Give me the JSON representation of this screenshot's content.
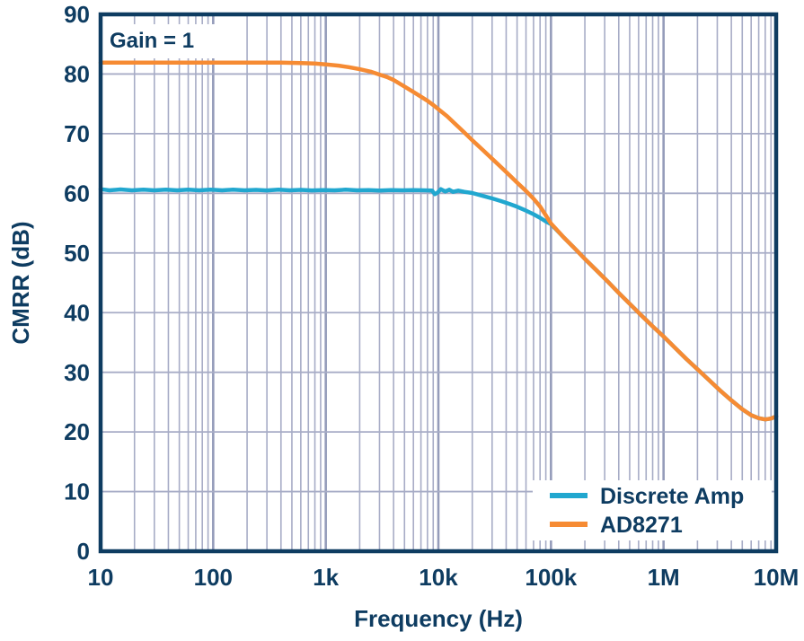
{
  "colors": {
    "navy": "#0e3c61",
    "grid_minor": "#a7acc6",
    "grid_major": "#959cba",
    "background": "#ffffff",
    "discrete_amp": "#21a7cf",
    "ad8271": "#f68b33"
  },
  "chart_data": {
    "type": "line",
    "x_scale": "log",
    "grid": true,
    "xlabel": "Frequency (Hz)",
    "ylabel": "CMRR (dB)",
    "annotation": "Gain = 1",
    "xlim": [
      10,
      10000000
    ],
    "ylim": [
      0,
      90
    ],
    "x_tick_values": [
      10,
      100,
      1000,
      10000,
      100000,
      1000000,
      10000000
    ],
    "x_tick_labels": [
      "10",
      "100",
      "1k",
      "10k",
      "100k",
      "1M",
      "10M"
    ],
    "y_tick_values": [
      0,
      10,
      20,
      30,
      40,
      50,
      60,
      70,
      80,
      90
    ],
    "y_tick_labels": [
      "0",
      "10",
      "20",
      "30",
      "40",
      "50",
      "60",
      "70",
      "80",
      "90"
    ],
    "legend_position": "bottom-right",
    "series": [
      {
        "name": "Discrete Amp",
        "color": "#21a7cf",
        "points": [
          [
            10,
            60.7
          ],
          [
            12,
            60.5
          ],
          [
            15,
            60.65
          ],
          [
            19,
            60.5
          ],
          [
            24,
            60.6
          ],
          [
            30,
            60.5
          ],
          [
            38,
            60.62
          ],
          [
            48,
            60.5
          ],
          [
            60,
            60.6
          ],
          [
            75,
            60.5
          ],
          [
            95,
            60.6
          ],
          [
            120,
            60.5
          ],
          [
            150,
            60.6
          ],
          [
            190,
            60.5
          ],
          [
            240,
            60.58
          ],
          [
            300,
            60.48
          ],
          [
            380,
            60.6
          ],
          [
            480,
            60.5
          ],
          [
            600,
            60.58
          ],
          [
            750,
            60.48
          ],
          [
            950,
            60.55
          ],
          [
            1200,
            60.5
          ],
          [
            1500,
            60.6
          ],
          [
            1900,
            60.5
          ],
          [
            2400,
            60.55
          ],
          [
            3000,
            60.45
          ],
          [
            3800,
            60.55
          ],
          [
            4800,
            60.5
          ],
          [
            6000,
            60.55
          ],
          [
            7500,
            60.5
          ],
          [
            8800,
            60.45
          ],
          [
            9300,
            59.85
          ],
          [
            9800,
            60.1
          ],
          [
            10500,
            60.7
          ],
          [
            11500,
            60.3
          ],
          [
            12500,
            60.6
          ],
          [
            13500,
            60.25
          ],
          [
            15000,
            60.45
          ],
          [
            17000,
            60.25
          ],
          [
            20000,
            60.05
          ],
          [
            25000,
            59.55
          ],
          [
            30000,
            59.15
          ],
          [
            36000,
            58.7
          ],
          [
            43000,
            58.2
          ],
          [
            50000,
            57.75
          ],
          [
            60000,
            57.1
          ],
          [
            70000,
            56.5
          ],
          [
            80000,
            55.9
          ],
          [
            90000,
            55.3
          ],
          [
            100000,
            54.85
          ],
          [
            130000,
            52.6
          ],
          [
            160000,
            50.9
          ],
          [
            200000,
            49.0
          ],
          [
            250000,
            47.2
          ],
          [
            320000,
            45.2
          ],
          [
            400000,
            43.3
          ],
          [
            500000,
            41.5
          ],
          [
            630000,
            39.6
          ],
          [
            800000,
            37.7
          ],
          [
            1000000,
            36.0
          ],
          [
            1250000,
            34.2
          ],
          [
            1600000,
            32.2
          ],
          [
            2000000,
            30.5
          ],
          [
            2500000,
            28.8
          ],
          [
            3200000,
            26.9
          ],
          [
            4000000,
            25.3
          ],
          [
            5000000,
            23.8
          ],
          [
            6000000,
            22.8
          ],
          [
            7000000,
            22.3
          ],
          [
            8000000,
            22.1
          ],
          [
            9000000,
            22.25
          ],
          [
            10000000,
            22.6
          ]
        ]
      },
      {
        "name": "AD8271",
        "color": "#f68b33",
        "points": [
          [
            10,
            81.9
          ],
          [
            15,
            81.9
          ],
          [
            25,
            81.9
          ],
          [
            40,
            81.9
          ],
          [
            60,
            81.9
          ],
          [
            100,
            81.9
          ],
          [
            150,
            81.9
          ],
          [
            250,
            81.9
          ],
          [
            400,
            81.9
          ],
          [
            600,
            81.85
          ],
          [
            800,
            81.75
          ],
          [
            1000,
            81.6
          ],
          [
            1300,
            81.4
          ],
          [
            1600,
            81.15
          ],
          [
            2000,
            80.8
          ],
          [
            2500,
            80.4
          ],
          [
            3000,
            79.9
          ],
          [
            3500,
            79.5
          ],
          [
            4000,
            79.0
          ],
          [
            5000,
            77.9
          ],
          [
            6000,
            77.0
          ],
          [
            7000,
            76.2
          ],
          [
            8000,
            75.5
          ],
          [
            9000,
            74.8
          ],
          [
            10000,
            74.1
          ],
          [
            12000,
            72.9
          ],
          [
            14000,
            71.7
          ],
          [
            17000,
            70.2
          ],
          [
            20000,
            68.9
          ],
          [
            25000,
            67.2
          ],
          [
            30000,
            65.8
          ],
          [
            36000,
            64.4
          ],
          [
            43000,
            63.0
          ],
          [
            50000,
            61.8
          ],
          [
            60000,
            60.4
          ],
          [
            70000,
            59.1
          ],
          [
            80000,
            57.8
          ],
          [
            90000,
            56.3
          ],
          [
            95000,
            55.6
          ],
          [
            100000,
            54.95
          ],
          [
            130000,
            52.6
          ],
          [
            160000,
            50.9
          ],
          [
            200000,
            49.0
          ],
          [
            250000,
            47.2
          ],
          [
            320000,
            45.2
          ],
          [
            400000,
            43.3
          ],
          [
            500000,
            41.5
          ],
          [
            630000,
            39.6
          ],
          [
            800000,
            37.7
          ],
          [
            1000000,
            36.0
          ],
          [
            1250000,
            34.2
          ],
          [
            1600000,
            32.2
          ],
          [
            2000000,
            30.5
          ],
          [
            2500000,
            28.8
          ],
          [
            3200000,
            26.9
          ],
          [
            4000000,
            25.3
          ],
          [
            5000000,
            23.8
          ],
          [
            6000000,
            22.8
          ],
          [
            7000000,
            22.3
          ],
          [
            8000000,
            22.1
          ],
          [
            9000000,
            22.25
          ],
          [
            10000000,
            22.6
          ]
        ]
      }
    ]
  }
}
